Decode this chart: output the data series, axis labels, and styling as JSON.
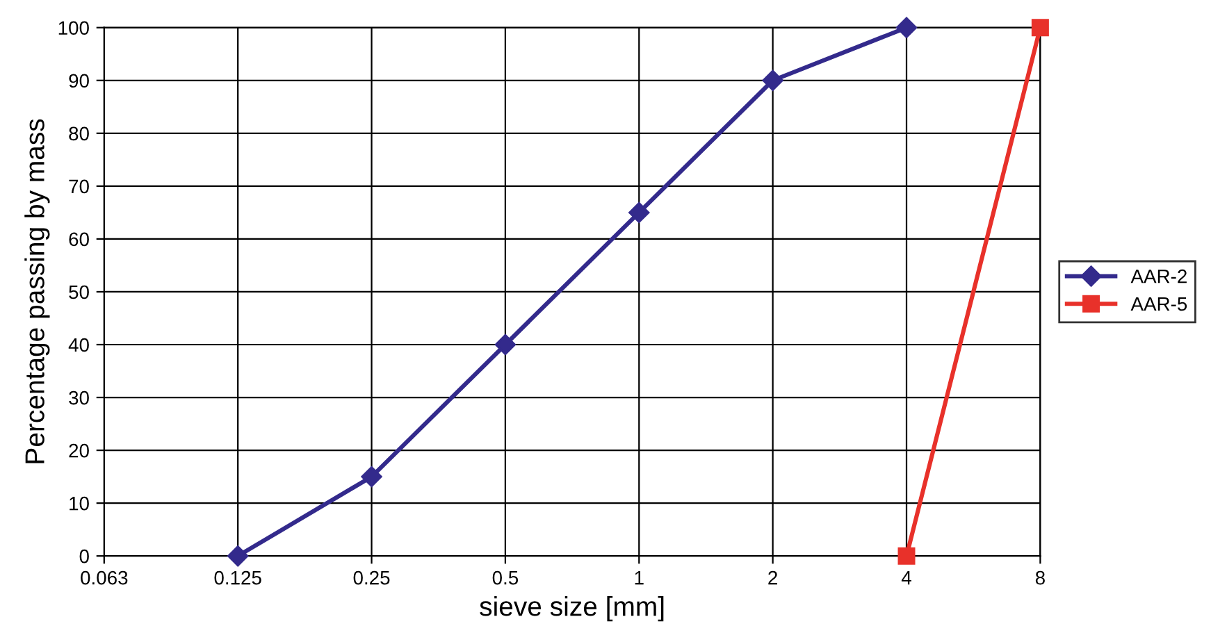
{
  "chart_data": {
    "type": "line",
    "xlabel": "sieve size [mm]",
    "ylabel": "Percentage passing by mass",
    "categories": [
      "0.063",
      "0.125",
      "0.25",
      "0.5",
      "1",
      "2",
      "4",
      "8"
    ],
    "series": [
      {
        "name": "AAR-2",
        "color": "#332a8c",
        "marker": "diamond",
        "values": [
          null,
          0,
          15,
          40,
          65,
          90,
          100,
          null
        ]
      },
      {
        "name": "AAR-5",
        "color": "#e8312a",
        "marker": "square",
        "values": [
          null,
          null,
          null,
          null,
          null,
          null,
          0,
          100
        ]
      }
    ],
    "ylim": [
      0,
      100
    ],
    "yticks": [
      0,
      10,
      20,
      30,
      40,
      50,
      60,
      70,
      80,
      90,
      100
    ],
    "grid": true,
    "legend": "right",
    "line_style": "solid"
  }
}
